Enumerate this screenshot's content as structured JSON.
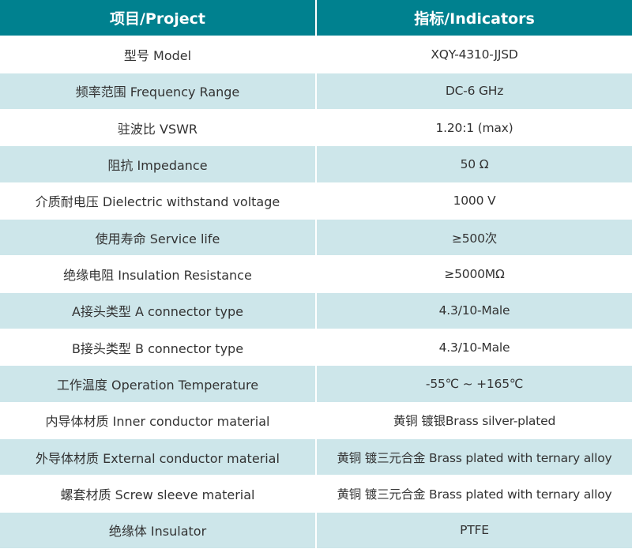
{
  "colors": {
    "header": "#00818f",
    "row_alt": "#cde6ea",
    "row": "#ffffff"
  },
  "header": {
    "project": "项目/Project",
    "indicators": "指标/Indicators"
  },
  "rows": [
    {
      "project": "型号 Model",
      "value": "XQY-4310-JJSD"
    },
    {
      "project": "频率范围 Frequency Range",
      "value": "DC-6 GHz"
    },
    {
      "project": "驻波比 VSWR",
      "value": "1.20:1 (max)"
    },
    {
      "project": "阻抗 Impedance",
      "value": "50 Ω"
    },
    {
      "project": "介质耐电压 Dielectric withstand voltage",
      "value": "1000 V"
    },
    {
      "project": "使用寿命 Service life",
      "value": "≥500次"
    },
    {
      "project": "绝缘电阻 Insulation Resistance",
      "value": "≥5000MΩ"
    },
    {
      "project": "A接头类型 A connector type",
      "value": "4.3/10-Male"
    },
    {
      "project": "B接头类型 B connector type",
      "value": "4.3/10-Male"
    },
    {
      "project": "工作温度 Operation Temperature",
      "value": "-55℃ ~ +165℃"
    },
    {
      "project": "内导体材质 Inner conductor material",
      "value": "黄铜 镀银Brass silver-plated"
    },
    {
      "project": "外导体材质 External conductor material",
      "value": "黄铜 镀三元合金 Brass plated with ternary alloy"
    },
    {
      "project": "螺套材质 Screw sleeve material",
      "value": "黄铜 镀三元合金 Brass plated with ternary alloy"
    },
    {
      "project": "绝缘体 Insulator",
      "value": "PTFE"
    }
  ]
}
